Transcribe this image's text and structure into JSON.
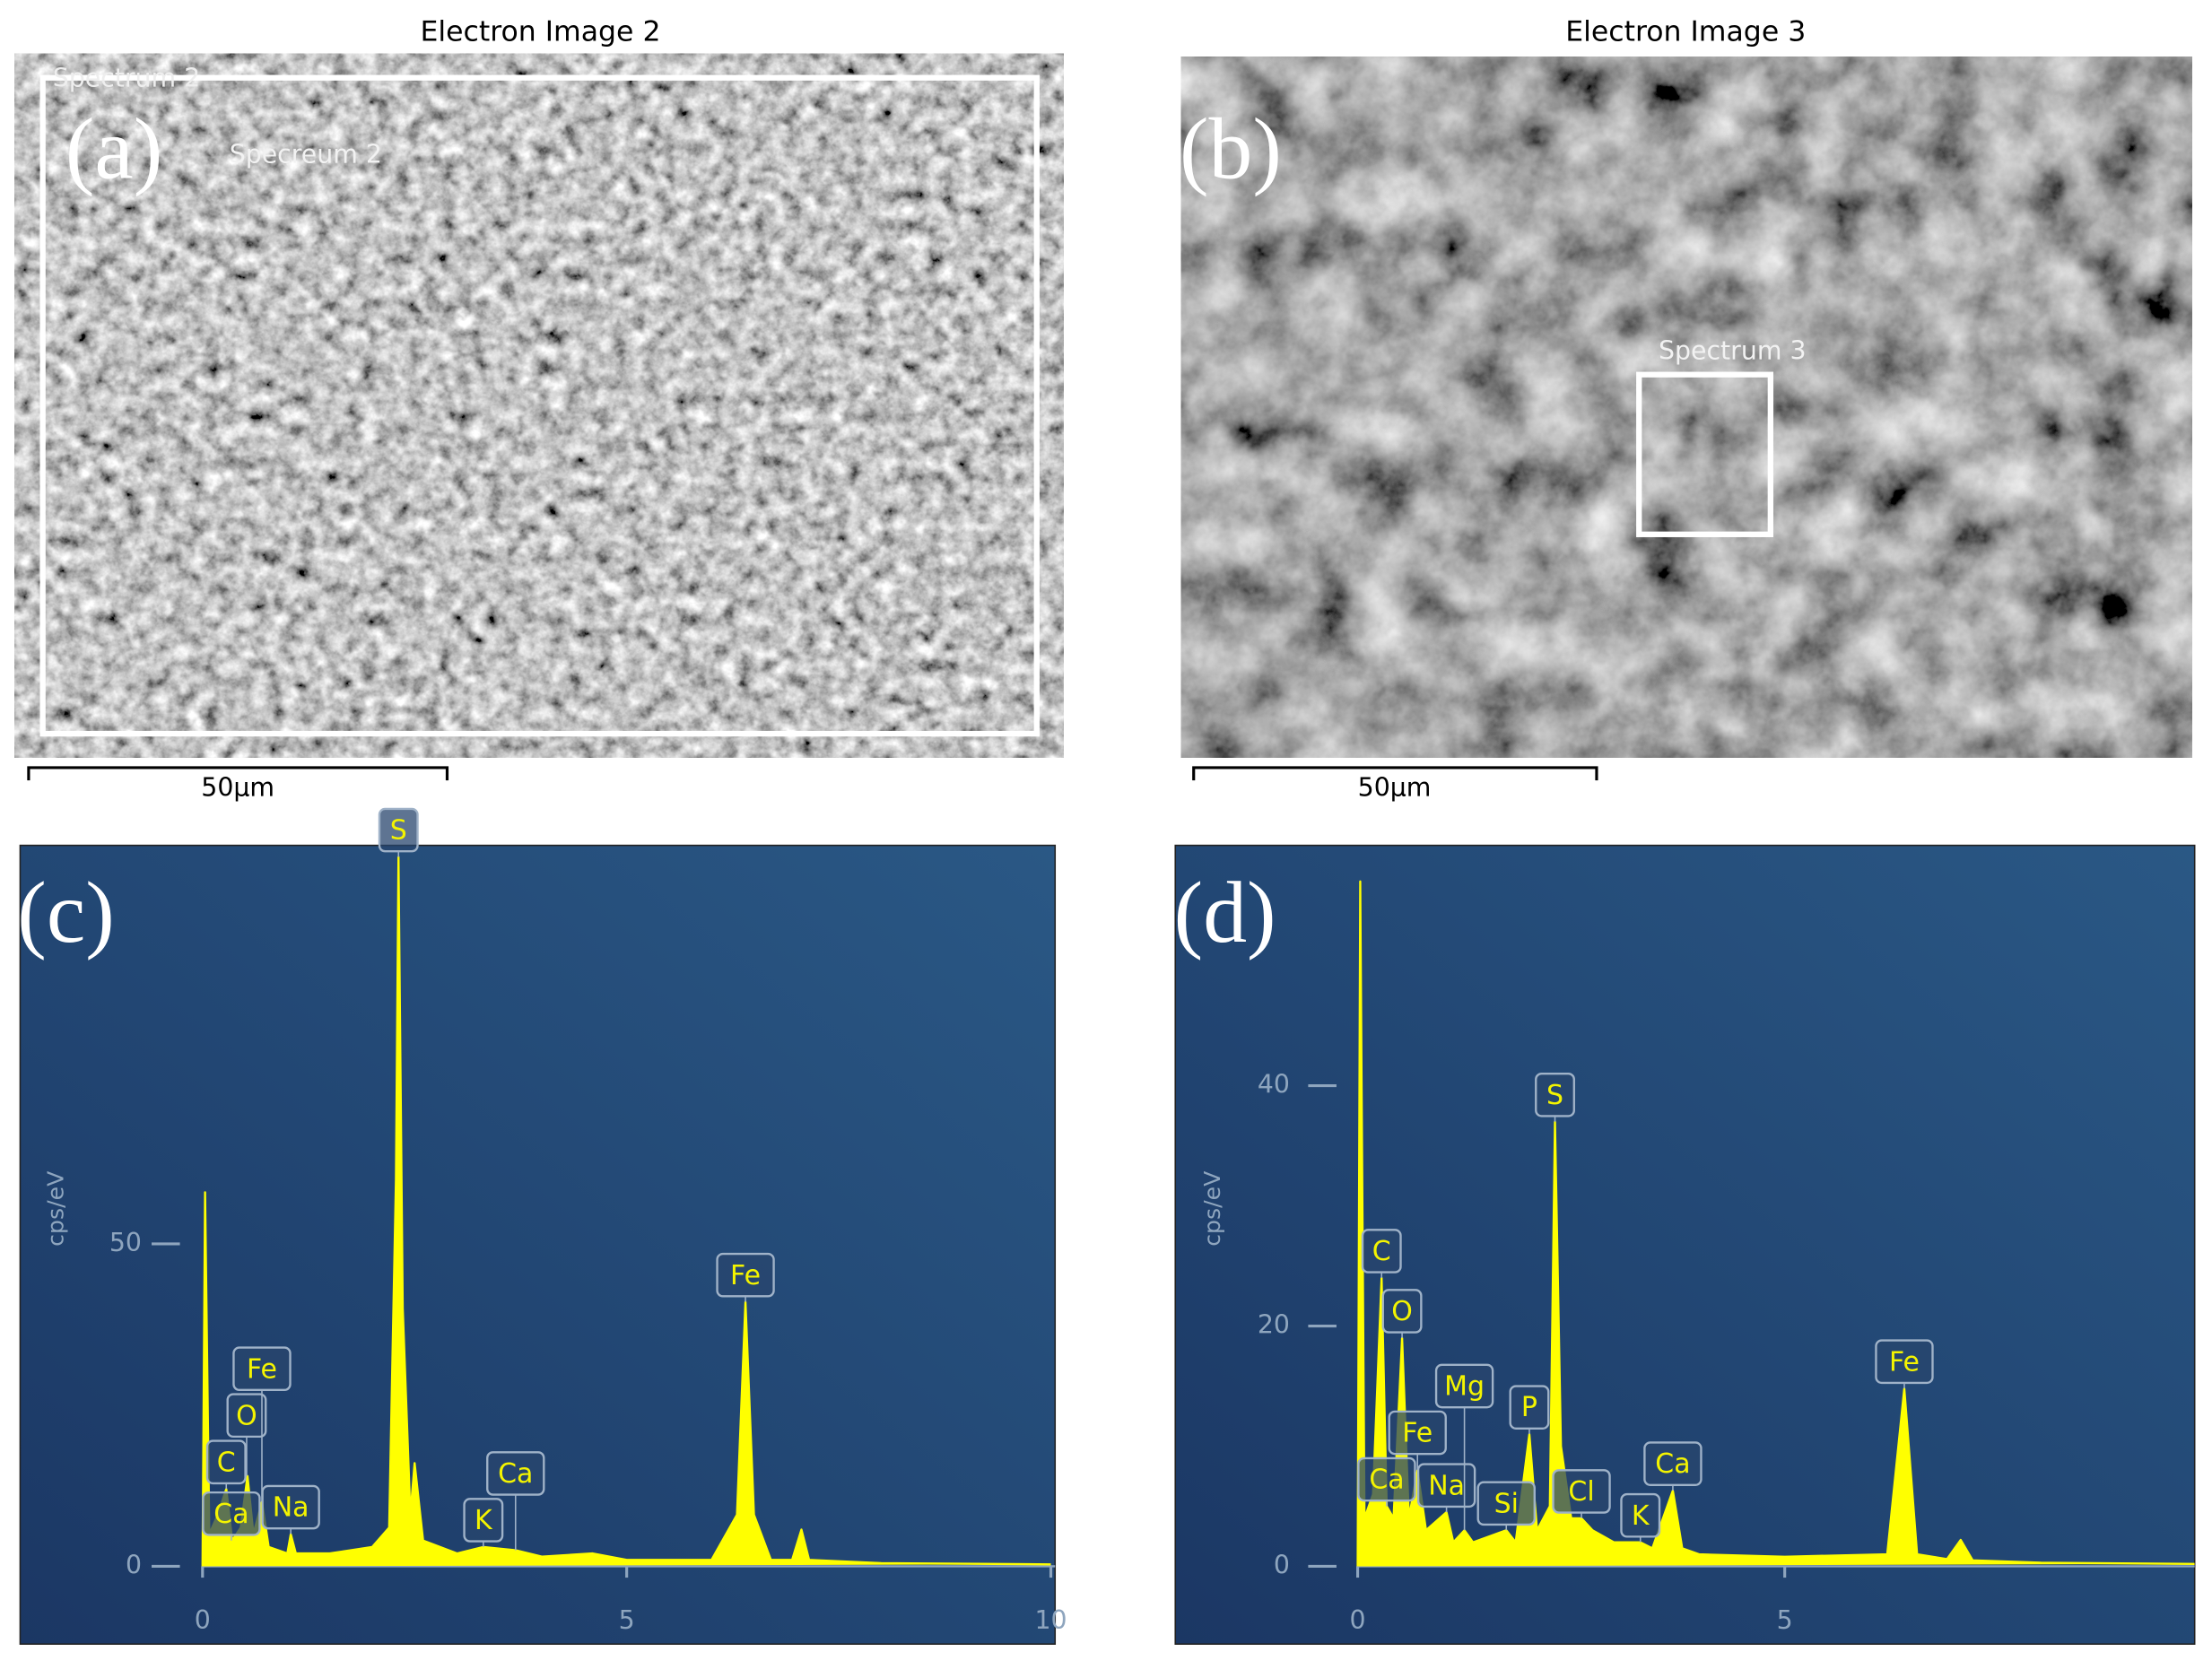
{
  "images": [
    {
      "title": "Electron Image 2",
      "panel": "(a)",
      "labels": [
        "Spectrum 2",
        "Specreum 2"
      ],
      "scale": "50µm"
    },
    {
      "title": "Electron Image 3",
      "panel": "(b)",
      "labels": [
        "Spectrum 3"
      ],
      "scale": "50µm"
    }
  ],
  "chart_data": [
    {
      "type": "line",
      "panel": "(c)",
      "ylabel": "cps/eV",
      "color": "#ffff00",
      "x": [
        0,
        0.03,
        0.08,
        0.18,
        0.28,
        0.35,
        0.45,
        0.53,
        0.6,
        0.7,
        0.78,
        1.0,
        1.04,
        1.1,
        1.5,
        2.0,
        2.2,
        2.28,
        2.31,
        2.36,
        2.45,
        2.5,
        2.6,
        3.0,
        3.31,
        3.69,
        4.0,
        4.6,
        5.0,
        6.0,
        6.3,
        6.4,
        6.5,
        6.7,
        6.95,
        7.06,
        7.15,
        8.0,
        10.0
      ],
      "values": [
        0,
        58,
        5,
        8,
        12,
        4,
        6,
        14,
        5,
        10,
        3,
        2,
        5,
        2,
        2,
        3,
        6,
        60,
        110,
        40,
        8,
        16,
        4,
        2,
        3,
        2.5,
        1.5,
        2,
        1,
        1,
        8,
        41,
        8,
        1,
        1,
        5.7,
        1,
        0.5,
        0.3
      ],
      "xlim": [
        0,
        10.05
      ],
      "xticks": [
        0,
        5,
        10
      ],
      "ylim": [
        0,
        111.8
      ],
      "yticks": [
        0,
        50
      ],
      "annotations": [
        {
          "text": "C",
          "x": 0.28
        },
        {
          "text": "Ca",
          "x": 0.34
        },
        {
          "text": "O",
          "x": 0.52
        },
        {
          "text": "Fe",
          "x": 0.7
        },
        {
          "text": "Na",
          "x": 1.04
        },
        {
          "text": "S",
          "x": 2.31
        },
        {
          "text": "K",
          "x": 3.31
        },
        {
          "text": "Ca",
          "x": 3.69
        },
        {
          "text": "Fe",
          "x": 6.4
        }
      ]
    },
    {
      "type": "line",
      "panel": "(d)",
      "ylabel": "cps/eV",
      "color": "#ffff00",
      "x": [
        0,
        0.03,
        0.08,
        0.18,
        0.28,
        0.34,
        0.42,
        0.52,
        0.6,
        0.7,
        0.8,
        1.04,
        1.12,
        1.25,
        1.35,
        1.74,
        1.85,
        2.01,
        2.1,
        2.25,
        2.31,
        2.38,
        2.5,
        2.62,
        2.75,
        3.0,
        3.31,
        3.45,
        3.69,
        3.8,
        4.0,
        5.0,
        6.2,
        6.4,
        6.55,
        6.9,
        7.06,
        7.2,
        8.0,
        9.8
      ],
      "values": [
        0,
        57,
        4,
        6,
        24,
        5,
        4,
        19,
        4,
        8,
        3,
        4.5,
        2,
        3,
        2,
        3,
        2,
        11,
        3,
        5,
        37,
        10,
        4,
        4,
        3,
        2,
        2,
        1.5,
        6.3,
        1.5,
        1,
        0.8,
        1,
        14.8,
        1,
        0.6,
        2.2,
        0.5,
        0.3,
        0.2
      ],
      "xlim": [
        0,
        9.8
      ],
      "xticks": [
        0,
        5
      ],
      "ylim": [
        0,
        60
      ],
      "yticks": [
        0,
        20,
        40
      ],
      "annotations": [
        {
          "text": "C",
          "x": 0.28
        },
        {
          "text": "Ca",
          "x": 0.34
        },
        {
          "text": "O",
          "x": 0.52
        },
        {
          "text": "Fe",
          "x": 0.7
        },
        {
          "text": "Na",
          "x": 1.04
        },
        {
          "text": "Mg",
          "x": 1.25
        },
        {
          "text": "Si",
          "x": 1.74
        },
        {
          "text": "P",
          "x": 2.01
        },
        {
          "text": "S",
          "x": 2.31
        },
        {
          "text": "Cl",
          "x": 2.62
        },
        {
          "text": "K",
          "x": 3.31
        },
        {
          "text": "Ca",
          "x": 3.69
        },
        {
          "text": "Fe",
          "x": 6.4
        }
      ]
    }
  ]
}
